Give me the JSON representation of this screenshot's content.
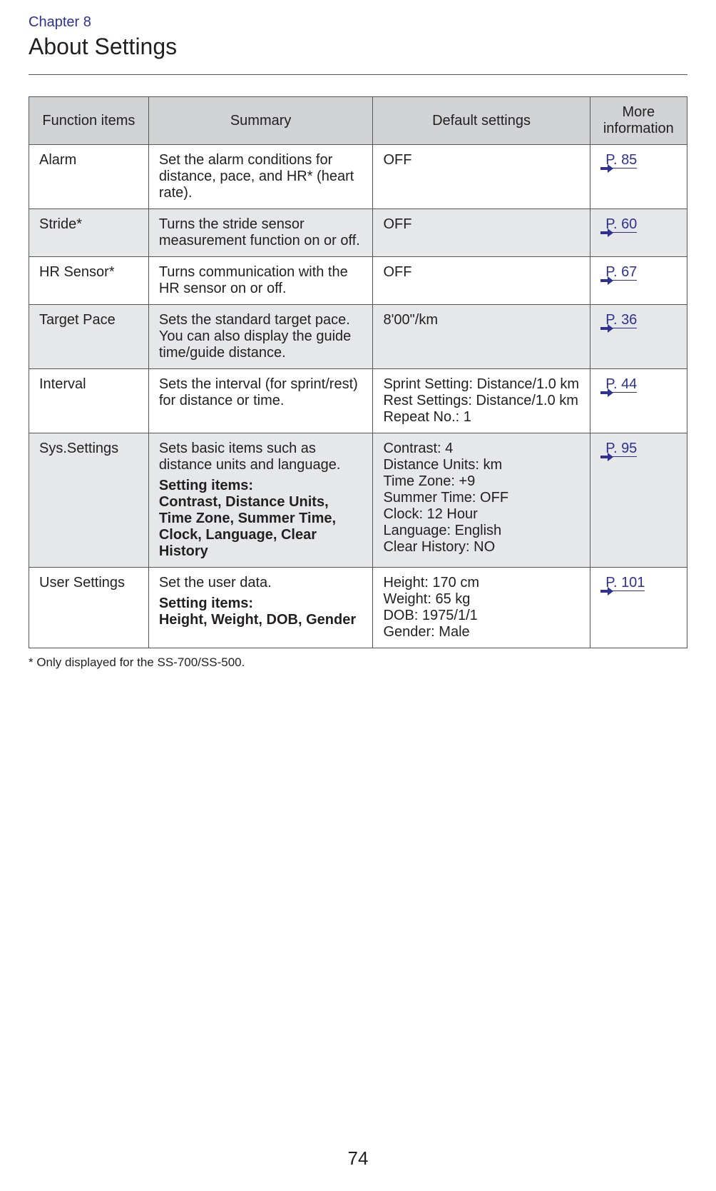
{
  "chapter_label": "Chapter 8",
  "page_title": "About Settings",
  "table": {
    "headers": {
      "function_items": "Function items",
      "summary": "Summary",
      "default_settings": "Default settings",
      "more_info": "More information"
    },
    "rows": [
      {
        "function": "Alarm",
        "summary": "Set the alarm conditions for distance, pace, and HR* (heart rate).",
        "default": "OFF",
        "link": "P. 85",
        "alt": false
      },
      {
        "function": "Stride*",
        "summary": "Turns the stride sensor measurement function on or off.",
        "default": "OFF",
        "link": "P. 60",
        "alt": true
      },
      {
        "function": "HR Sensor*",
        "summary": "Turns communication with the HR sensor on or off.",
        "default": "OFF",
        "link": "P. 67",
        "alt": false
      },
      {
        "function": "Target Pace",
        "summary": "Sets the standard target pace. You can also display the guide time/guide distance.",
        "default": "8'00\"/km",
        "link": "P. 36",
        "alt": true
      },
      {
        "function": "Interval",
        "summary": "Sets the interval (for sprint/rest) for distance or time.",
        "default": "Sprint Setting: Distance/1.0 km\nRest Settings: Distance/1.0 km\nRepeat No.: 1",
        "link": "P. 44",
        "alt": false
      },
      {
        "function": "Sys.Settings",
        "summary": "Sets basic items such as distance units and language.",
        "setting_items_label": "Setting items:",
        "setting_items": "Contrast, Distance Units, Time Zone, Summer Time, Clock, Language, Clear History",
        "default": "Contrast: 4\nDistance Units: km\nTime Zone: +9\nSummer Time: OFF\nClock: 12 Hour\nLanguage: English\nClear History: NO",
        "link": "P. 95",
        "alt": true
      },
      {
        "function": "User Settings",
        "summary": "Set the user data.",
        "setting_items_label": "Setting items:",
        "setting_items": "Height, Weight, DOB, Gender",
        "default": "Height: 170 cm\nWeight: 65 kg\nDOB: 1975/1/1\nGender: Male",
        "link": "P. 101",
        "alt": false
      }
    ]
  },
  "footnote": "* Only displayed for the SS-700/SS-500.",
  "page_number": "74",
  "colors": {
    "blue": "#2e3192",
    "header_bg": "#d1d3d4",
    "alt_row_bg": "#e6e7e8",
    "border": "#555555",
    "text": "#231f20"
  }
}
